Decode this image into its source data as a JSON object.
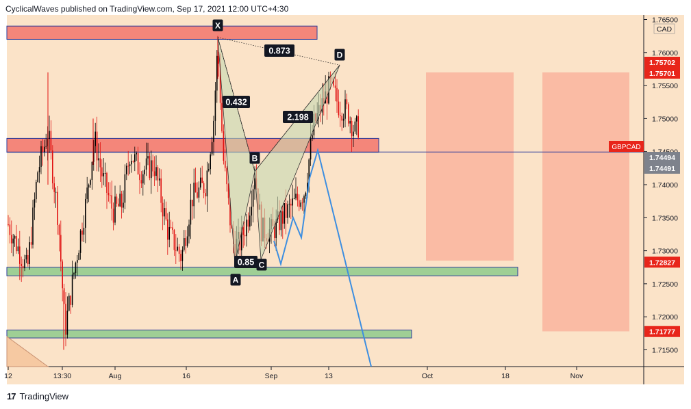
{
  "header": {
    "text": "CyclicalWaves published on TradingView.com, Sep 17, 2021 12:00 UTC+4:30"
  },
  "footer": {
    "logo_icon": "tradingview-logo-icon",
    "brand": "TradingView"
  },
  "colors": {
    "background": "#fbe3c8",
    "candle_up": "#000000",
    "candle_down": "#e01010",
    "red_zone": "#f4867a",
    "green_zone": "#9fcf95",
    "target_box": "#f9b49e",
    "projection": "#3d8ee0",
    "pattern_fill": "#c7d8b3",
    "price_label_red": "#e8251a",
    "price_label_gray": "#7e828c"
  },
  "chart_data": {
    "type": "candlestick",
    "symbol": "GBPCAD",
    "currency": "CAD",
    "ylim": [
      1.7105,
      1.7665
    ],
    "y_ticks": [
      "1.76500",
      "1.76000",
      "1.75500",
      "1.75000",
      "1.74500",
      "1.74000",
      "1.73500",
      "1.73000",
      "1.72500",
      "1.72000",
      "1.71500"
    ],
    "x_ticks": [
      "12",
      "13:30",
      "Aug",
      "16",
      "Sep",
      "13",
      "Oct",
      "18",
      "Nov"
    ],
    "price_labels": [
      {
        "text": "1.75702",
        "color": "red",
        "value": 1.75702
      },
      {
        "text": "1.75701",
        "color": "red",
        "value": 1.75701
      },
      {
        "text": "GBPCAD",
        "color": "red",
        "value": 1.74494
      },
      {
        "text": "1.74494",
        "color": "gray",
        "value": 1.74494
      },
      {
        "text": "1.74491",
        "color": "gray",
        "value": 1.74491
      },
      {
        "text": "1.72827",
        "color": "red",
        "value": 1.72827
      },
      {
        "text": "1.71777",
        "color": "red",
        "value": 1.71777
      }
    ],
    "harmonic_pattern": {
      "points": [
        {
          "label": "X",
          "price": 1.7623
        },
        {
          "label": "A",
          "price": 1.7281
        },
        {
          "label": "B",
          "price": 1.742
        },
        {
          "label": "C",
          "price": 1.7287
        },
        {
          "label": "D",
          "price": 1.7581
        }
      ],
      "ratios": [
        "0.873",
        "0.432",
        "2.198",
        "0.85"
      ]
    },
    "zones": [
      {
        "name": "resistance-top",
        "from": 1.762,
        "to": 1.764,
        "color": "red"
      },
      {
        "name": "resistance-mid",
        "from": 1.7449,
        "to": 1.747,
        "color": "red"
      },
      {
        "name": "support-mid",
        "from": 1.7262,
        "to": 1.7275,
        "color": "green"
      },
      {
        "name": "support-low",
        "from": 1.7168,
        "to": 1.718,
        "color": "green"
      }
    ],
    "target_boxes": [
      {
        "name": "target-box-1",
        "from": 1.7285,
        "to": 1.757
      },
      {
        "name": "target-box-2",
        "from": 1.7178,
        "to": 1.757
      }
    ],
    "current_price": 1.74494
  }
}
